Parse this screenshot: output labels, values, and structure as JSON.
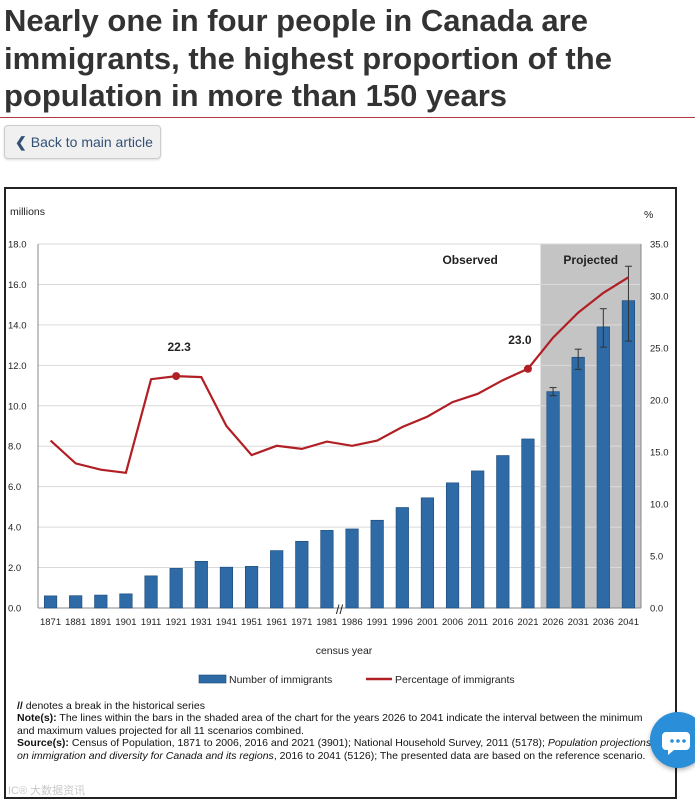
{
  "headline": "Nearly one in four people in Canada are immigrants, the highest proportion of the population in more than 150 years",
  "back_button": {
    "label": "Back to main article",
    "icon": "chevron-left-icon"
  },
  "colors": {
    "bar": "#2e6aa6",
    "bar_outline": "#1c4978",
    "line": "#b11f24",
    "projected_shade": "#c4c4c4",
    "rule": "#af3c43"
  },
  "chart_data": {
    "type": "bar",
    "categories": [
      "1871",
      "1881",
      "1891",
      "1901",
      "1911",
      "1921",
      "1931",
      "1941",
      "1951",
      "1961",
      "1971",
      "1981",
      "1986",
      "1991",
      "1996",
      "2001",
      "2006",
      "2011",
      "2016",
      "2021",
      "2026",
      "2031",
      "2036",
      "2041"
    ],
    "series": [
      {
        "name": "Number of immigrants",
        "type": "bar",
        "axis": "left",
        "values": [
          0.6,
          0.61,
          0.64,
          0.7,
          1.59,
          1.96,
          2.31,
          2.02,
          2.06,
          2.84,
          3.3,
          3.84,
          3.91,
          4.34,
          4.97,
          5.45,
          6.19,
          6.78,
          7.54,
          8.36,
          10.7,
          12.4,
          13.9,
          15.2
        ]
      },
      {
        "name": "Percentage of immigrants",
        "type": "line",
        "axis": "right",
        "values": [
          16.1,
          13.9,
          13.3,
          13.0,
          22.0,
          22.3,
          22.2,
          17.5,
          14.7,
          15.6,
          15.3,
          16.0,
          15.6,
          16.1,
          17.4,
          18.4,
          19.8,
          20.6,
          21.9,
          23.0,
          26.0,
          28.4,
          30.3,
          31.8
        ]
      }
    ],
    "error_bars": [
      {
        "category": "2026",
        "low": 10.5,
        "high": 10.9
      },
      {
        "category": "2031",
        "low": 11.8,
        "high": 12.8
      },
      {
        "category": "2036",
        "low": 12.9,
        "high": 14.8
      },
      {
        "category": "2041",
        "low": 13.2,
        "high": 16.9
      }
    ],
    "annotations": [
      {
        "label": "22.3",
        "category": "1921"
      },
      {
        "label": "23.0",
        "category": "2021"
      }
    ],
    "regions": [
      {
        "label": "Observed",
        "from": "1871",
        "to": "2021",
        "shaded": false
      },
      {
        "label": "Projected",
        "from": "2026",
        "to": "2041",
        "shaded": true
      }
    ],
    "break_marker": {
      "label": "//",
      "between": [
        "1981",
        "1986"
      ]
    },
    "left_axis": {
      "title": "millions",
      "ylim": [
        0,
        18
      ],
      "ticks": [
        "0.0",
        "2.0",
        "4.0",
        "6.0",
        "8.0",
        "10.0",
        "12.0",
        "14.0",
        "16.0",
        "18.0"
      ]
    },
    "right_axis": {
      "title": "%",
      "ylim": [
        0,
        35
      ],
      "ticks": [
        "0.0",
        "5.0",
        "10.0",
        "15.0",
        "20.0",
        "25.0",
        "30.0",
        "35.0"
      ]
    },
    "xlabel": "census year",
    "grid": true,
    "legend_placement": "bottom"
  },
  "notes": {
    "break_marker": "//",
    "break_text": " denotes a break in the historical series",
    "note_label": "Note(s):",
    "note_text": " The lines within the bars in the shaded area of the chart for the years 2026 to 2041 indicate the interval between the minimum and maximum values projected for all 11 scenarios combined.",
    "source_label": "Source(s):",
    "source_text": " Census of Population, 1871 to 2006, 2016 and 2021 (3901); National Household Survey, 2011 (5178); ",
    "source_italic": "Population projections on immigration and diversity for Canada and its regions",
    "source_text2": ", 2016 to 2041 (5126); The presented data are based on the reference scenario."
  },
  "watermark": "IC® 大数据资讯"
}
